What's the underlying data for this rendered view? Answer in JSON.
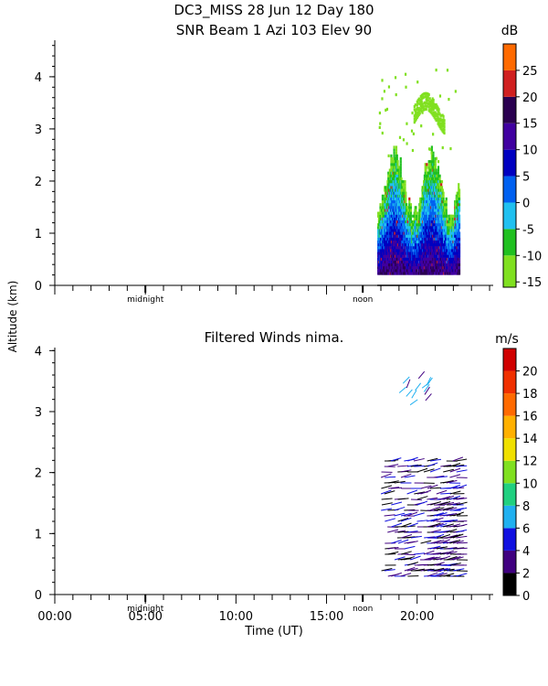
{
  "title_line1": "DC3_MISS  28 Jun 12 Day 180",
  "title_line2": "SNR Beam  1 Azi 103 Elev 90",
  "shared_ylabel": "Altitude (km)",
  "shared_xlabel": "Time (UT)",
  "chart_data": [
    {
      "type": "heatmap",
      "name": "snr",
      "title": "SNR Beam  1 Azi 103 Elev 90",
      "ylabel": "Altitude (km)",
      "ylim": [
        0,
        4.7
      ],
      "y_ticks": [
        0,
        1,
        2,
        3,
        4
      ],
      "xlim_hours": [
        0,
        24.2
      ],
      "markers": [
        {
          "label": "midnight",
          "hour": 5
        },
        {
          "label": "noon",
          "hour": 17
        }
      ],
      "colorbar": {
        "unit": "dB",
        "ticks": [
          "-15",
          "-10",
          "-5",
          "0",
          "5",
          "10",
          "15",
          "20",
          "25"
        ],
        "tick_values": [
          -15,
          -10,
          -5,
          0,
          5,
          10,
          15,
          20,
          25
        ],
        "range": [
          -16,
          30
        ],
        "colors": [
          "#80e020",
          "#20c020",
          "#20c0f0",
          "#0060f0",
          "#0000c0",
          "#4000a0",
          "#2a0050",
          "#d02020",
          "#ff6a00",
          "#ffb000"
        ]
      },
      "data_extent": {
        "hour_start": 17.8,
        "hour_end": 22.3,
        "alt_start": 0.2,
        "alt_end": 4.4
      }
    },
    {
      "type": "scatter",
      "name": "winds",
      "title": "Filtered Winds nima.",
      "ylim": [
        0,
        4.05
      ],
      "y_ticks": [
        0,
        1,
        2,
        3,
        4
      ],
      "xlim_hours": [
        0,
        24.2
      ],
      "x_ticks": [
        "00:00",
        "05:00",
        "10:00",
        "15:00",
        "20:00"
      ],
      "x_tick_hours": [
        0,
        5,
        10,
        15,
        20
      ],
      "xlabel": "Time (UT)",
      "markers": [
        {
          "label": "midnight",
          "hour": 5
        },
        {
          "label": "noon",
          "hour": 17
        }
      ],
      "colorbar": {
        "unit": "m/s",
        "ticks": [
          "0",
          "2",
          "4",
          "6",
          "8",
          "10",
          "12",
          "14",
          "16",
          "18",
          "20"
        ],
        "tick_values": [
          0,
          2,
          4,
          6,
          8,
          10,
          12,
          14,
          16,
          18,
          20
        ],
        "range": [
          0,
          22
        ],
        "colors": [
          "#000000",
          "#400080",
          "#1010e0",
          "#20b0f0",
          "#20d080",
          "#80e020",
          "#f0e000",
          "#ffb000",
          "#ff6a00",
          "#f03000",
          "#d00000"
        ]
      },
      "data_extent": {
        "hour_start": 17.8,
        "hour_end": 22.3,
        "alt_start": 0.2,
        "alt_end": 3.6
      }
    }
  ]
}
